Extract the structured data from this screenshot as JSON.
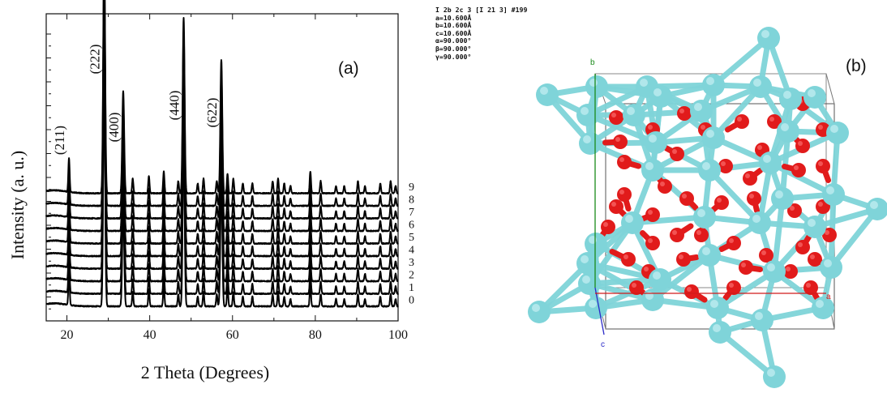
{
  "panel_a_label": "(a)",
  "panel_b_label": "(b)",
  "chart_data": {
    "type": "line",
    "title": "",
    "xlabel": "2 Theta (Degrees)",
    "ylabel": "Intensity (a. u.)",
    "xlim": [
      15,
      100
    ],
    "x_ticks": [
      20,
      40,
      60,
      80,
      100
    ],
    "y_tick_labels": false,
    "grid": false,
    "legend": "none",
    "series": [
      {
        "label": "0",
        "offset": 0
      },
      {
        "label": "1",
        "offset": 1
      },
      {
        "label": "2",
        "offset": 2
      },
      {
        "label": "3",
        "offset": 3
      },
      {
        "label": "4",
        "offset": 4
      },
      {
        "label": "5",
        "offset": 5
      },
      {
        "label": "6",
        "offset": 6
      },
      {
        "label": "7",
        "offset": 7
      },
      {
        "label": "8",
        "offset": 8
      },
      {
        "label": "9",
        "offset": 9
      }
    ],
    "peaks": [
      {
        "two_theta": 20.5,
        "rel": 0.14
      },
      {
        "two_theta": 29.0,
        "rel": 1.0
      },
      {
        "two_theta": 33.6,
        "rel": 0.42
      },
      {
        "two_theta": 35.9,
        "rel": 0.06
      },
      {
        "two_theta": 39.8,
        "rel": 0.07
      },
      {
        "two_theta": 43.4,
        "rel": 0.09
      },
      {
        "two_theta": 46.9,
        "rel": 0.05
      },
      {
        "two_theta": 48.2,
        "rel": 0.72
      },
      {
        "two_theta": 51.6,
        "rel": 0.04
      },
      {
        "two_theta": 53.0,
        "rel": 0.06
      },
      {
        "two_theta": 56.2,
        "rel": 0.05
      },
      {
        "two_theta": 57.3,
        "rel": 0.55
      },
      {
        "two_theta": 58.8,
        "rel": 0.08
      },
      {
        "two_theta": 60.2,
        "rel": 0.06
      },
      {
        "two_theta": 62.5,
        "rel": 0.04
      },
      {
        "two_theta": 64.8,
        "rel": 0.04
      },
      {
        "two_theta": 69.7,
        "rel": 0.05
      },
      {
        "two_theta": 71.0,
        "rel": 0.06
      },
      {
        "two_theta": 72.5,
        "rel": 0.04
      },
      {
        "two_theta": 74.0,
        "rel": 0.03
      },
      {
        "two_theta": 78.8,
        "rel": 0.09
      },
      {
        "two_theta": 81.3,
        "rel": 0.05
      },
      {
        "two_theta": 85.0,
        "rel": 0.03
      },
      {
        "two_theta": 87.0,
        "rel": 0.03
      },
      {
        "two_theta": 90.3,
        "rel": 0.05
      },
      {
        "two_theta": 92.0,
        "rel": 0.03
      },
      {
        "two_theta": 95.7,
        "rel": 0.04
      },
      {
        "two_theta": 98.2,
        "rel": 0.05
      },
      {
        "two_theta": 99.4,
        "rel": 0.03
      }
    ],
    "annotations": [
      {
        "text": "(211)",
        "two_theta": 20.5
      },
      {
        "text": "(222)",
        "two_theta": 29.0
      },
      {
        "text": "(400)",
        "two_theta": 33.6
      },
      {
        "text": "(440)",
        "two_theta": 48.2
      },
      {
        "text": "(622)",
        "two_theta": 57.3
      }
    ]
  },
  "crystal_structure": {
    "space_group_line": "I 2b 2c 3 [I 21 3] #199",
    "a": "a=10.600Å",
    "b": "b=10.600Å",
    "c": "c=10.600Å",
    "alpha": "α=90.000°",
    "beta": "β=90.000°",
    "gamma": "γ=90.000°",
    "axis_b_label": "b",
    "axis_c_label": "c",
    "axis_a_label": "a",
    "cation_color": "#7fd4d9",
    "oxygen_color": "#e11b1b",
    "axis_b_color": "#1a8a1a",
    "axis_c_color": "#2a2ac8",
    "axis_a_color": "#d11a1a"
  }
}
